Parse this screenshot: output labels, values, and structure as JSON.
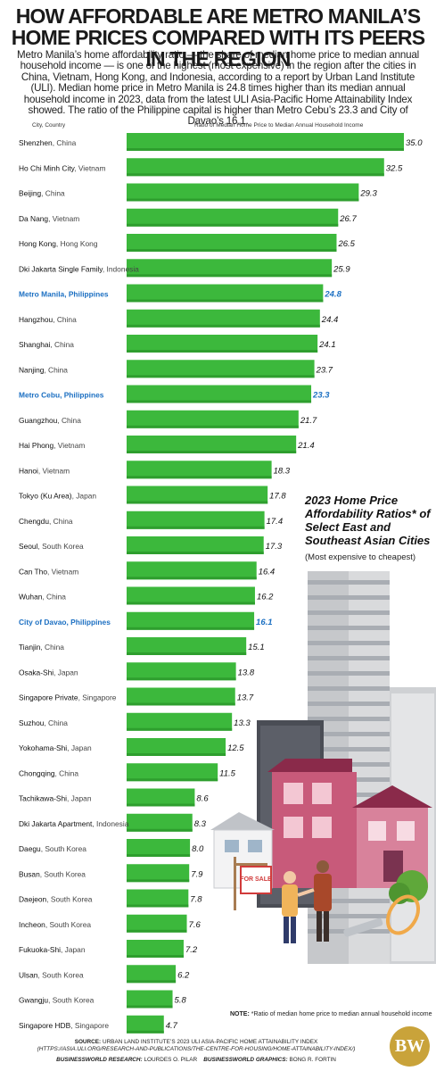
{
  "header": {
    "title": "HOW AFFORDABLE ARE METRO MANILA’S HOME PRICES COMPARED WITH ITS PEERS IN THE REGION",
    "subtitle": "Metro Manila’s home affordability ratio — the share of median home price to median annual household income — is one of the highest (most expensive) in the region after the cities in China, Vietnam, Hong Kong, and Indonesia, according to a report by Urban Land Institute (ULI). Median home price in Metro Manila is 24.8 times higher than its median annual household income in 2023, data from the latest ULI Asia-Pacific Home Attainability Index showed. The ratio of the Philippine capital is higher than Metro Cebu’s 23.3 and City of Davao’s 16.1."
  },
  "columns": {
    "left": "City, Country",
    "right": "Ratio of Median Home Price to Median Annual Household Income"
  },
  "inset": {
    "title": "2023 Home Price Affordability Ratios* of Select East and Southeast Asian Cities",
    "subtitle": "(Most expensive to cheapest)"
  },
  "colors": {
    "bar": "#3cb83c",
    "bar_dark": "#2e9e2e",
    "highlight_text": "#1b6fc2",
    "text": "#222222"
  },
  "chart_data": {
    "type": "bar",
    "orientation": "horizontal",
    "xlim": [
      0,
      35
    ],
    "grid": false,
    "cities": [
      {
        "city": "Shenzhen",
        "country": "China",
        "value": 35.0,
        "label": "35.0",
        "highlight": false
      },
      {
        "city": "Ho Chi Minh City",
        "country": "Vietnam",
        "value": 32.5,
        "label": "32.5",
        "highlight": false
      },
      {
        "city": "Beijing",
        "country": "China",
        "value": 29.3,
        "label": "29.3",
        "highlight": false
      },
      {
        "city": "Da Nang",
        "country": "Vietnam",
        "value": 26.7,
        "label": "26.7",
        "highlight": false
      },
      {
        "city": "Hong Kong",
        "country": "Hong Kong",
        "value": 26.5,
        "label": "26.5",
        "highlight": false
      },
      {
        "city": "Dki Jakarta Single Family",
        "country": "Indonesia",
        "value": 25.9,
        "label": "25.9",
        "highlight": false
      },
      {
        "city": "Metro Manila",
        "country": "Philippines",
        "value": 24.8,
        "label": "24.8",
        "highlight": true
      },
      {
        "city": "Hangzhou",
        "country": "China",
        "value": 24.4,
        "label": "24.4",
        "highlight": false
      },
      {
        "city": "Shanghai",
        "country": "China",
        "value": 24.1,
        "label": "24.1",
        "highlight": false
      },
      {
        "city": "Nanjing",
        "country": "China",
        "value": 23.7,
        "label": "23.7",
        "highlight": false
      },
      {
        "city": "Metro Cebu",
        "country": "Philippines",
        "value": 23.3,
        "label": "23.3",
        "highlight": true
      },
      {
        "city": "Guangzhou",
        "country": "China",
        "value": 21.7,
        "label": "21.7",
        "highlight": false
      },
      {
        "city": "Hai Phong",
        "country": "Vietnam",
        "value": 21.4,
        "label": "21.4",
        "highlight": false
      },
      {
        "city": "Hanoi",
        "country": "Vietnam",
        "value": 18.3,
        "label": "18.3",
        "highlight": false
      },
      {
        "city": "Tokyo (Ku Area)",
        "country": "Japan",
        "value": 17.8,
        "label": "17.8",
        "highlight": false
      },
      {
        "city": "Chengdu",
        "country": "China",
        "value": 17.4,
        "label": "17.4",
        "highlight": false
      },
      {
        "city": "Seoul",
        "country": "South Korea",
        "value": 17.3,
        "label": "17.3",
        "highlight": false
      },
      {
        "city": "Can Tho",
        "country": "Vietnam",
        "value": 16.4,
        "label": "16.4",
        "highlight": false
      },
      {
        "city": "Wuhan",
        "country": "China",
        "value": 16.2,
        "label": "16.2",
        "highlight": false
      },
      {
        "city": "City of Davao",
        "country": "Philippines",
        "value": 16.1,
        "label": "16.1",
        "highlight": true
      },
      {
        "city": "Tianjin",
        "country": "China",
        "value": 15.1,
        "label": "15.1",
        "highlight": false
      },
      {
        "city": "Osaka-Shi",
        "country": "Japan",
        "value": 13.8,
        "label": "13.8",
        "highlight": false
      },
      {
        "city": "Singapore Private",
        "country": "Singapore",
        "value": 13.7,
        "label": "13.7",
        "highlight": false
      },
      {
        "city": "Suzhou",
        "country": "China",
        "value": 13.3,
        "label": "13.3",
        "highlight": false
      },
      {
        "city": "Yokohama-Shi",
        "country": "Japan",
        "value": 12.5,
        "label": "12.5",
        "highlight": false
      },
      {
        "city": "Chongqing",
        "country": "China",
        "value": 11.5,
        "label": "11.5",
        "highlight": false
      },
      {
        "city": "Tachikawa-Shi",
        "country": "Japan",
        "value": 8.6,
        "label": "8.6",
        "highlight": false
      },
      {
        "city": "Dki Jakarta Apartment",
        "country": "Indonesia",
        "value": 8.3,
        "label": "8.3",
        "highlight": false
      },
      {
        "city": "Daegu",
        "country": "South Korea",
        "value": 8.0,
        "label": "8.0",
        "highlight": false
      },
      {
        "city": "Busan",
        "country": "South Korea",
        "value": 7.9,
        "label": "7.9",
        "highlight": false
      },
      {
        "city": "Daejeon",
        "country": "South Korea",
        "value": 7.8,
        "label": "7.8",
        "highlight": false
      },
      {
        "city": "Incheon",
        "country": "South Korea",
        "value": 7.6,
        "label": "7.6",
        "highlight": false
      },
      {
        "city": "Fukuoka-Shi",
        "country": "Japan",
        "value": 7.2,
        "label": "7.2",
        "highlight": false
      },
      {
        "city": "Ulsan",
        "country": "South Korea",
        "value": 6.2,
        "label": "6.2",
        "highlight": false
      },
      {
        "city": "Gwangju",
        "country": "South Korea",
        "value": 5.8,
        "label": "5.8",
        "highlight": false
      },
      {
        "city": "Singapore HDB",
        "country": "Singapore",
        "value": 4.7,
        "label": "4.7",
        "highlight": false
      }
    ]
  },
  "illustration": {
    "sign_text": "FOR SALE"
  },
  "footer": {
    "note_label": "NOTE:",
    "note_text": " *Ratio of median home price to median annual household income",
    "source_label": "SOURCE:",
    "source_text": " URBAN LAND INSTITUTE’S 2023 ULI ASIA-PACIFIC HOME ATTAINABILITY INDEX",
    "source_url": "(HTTPS://ASIA.ULI.ORG/RESEARCH-AND-PUBLICATIONS/THE-CENTRE-FOR-HOUSING/HOME-ATTAINABILITY-INDEX/)",
    "research_label": "BUSINESSWORLD RESEARCH:",
    "research_name": " LOURDES O. PILAR",
    "graphics_label": "BUSINESSWORLD GRAPHICS:",
    "graphics_name": " BONG R. FORTIN",
    "logo": "BW"
  }
}
